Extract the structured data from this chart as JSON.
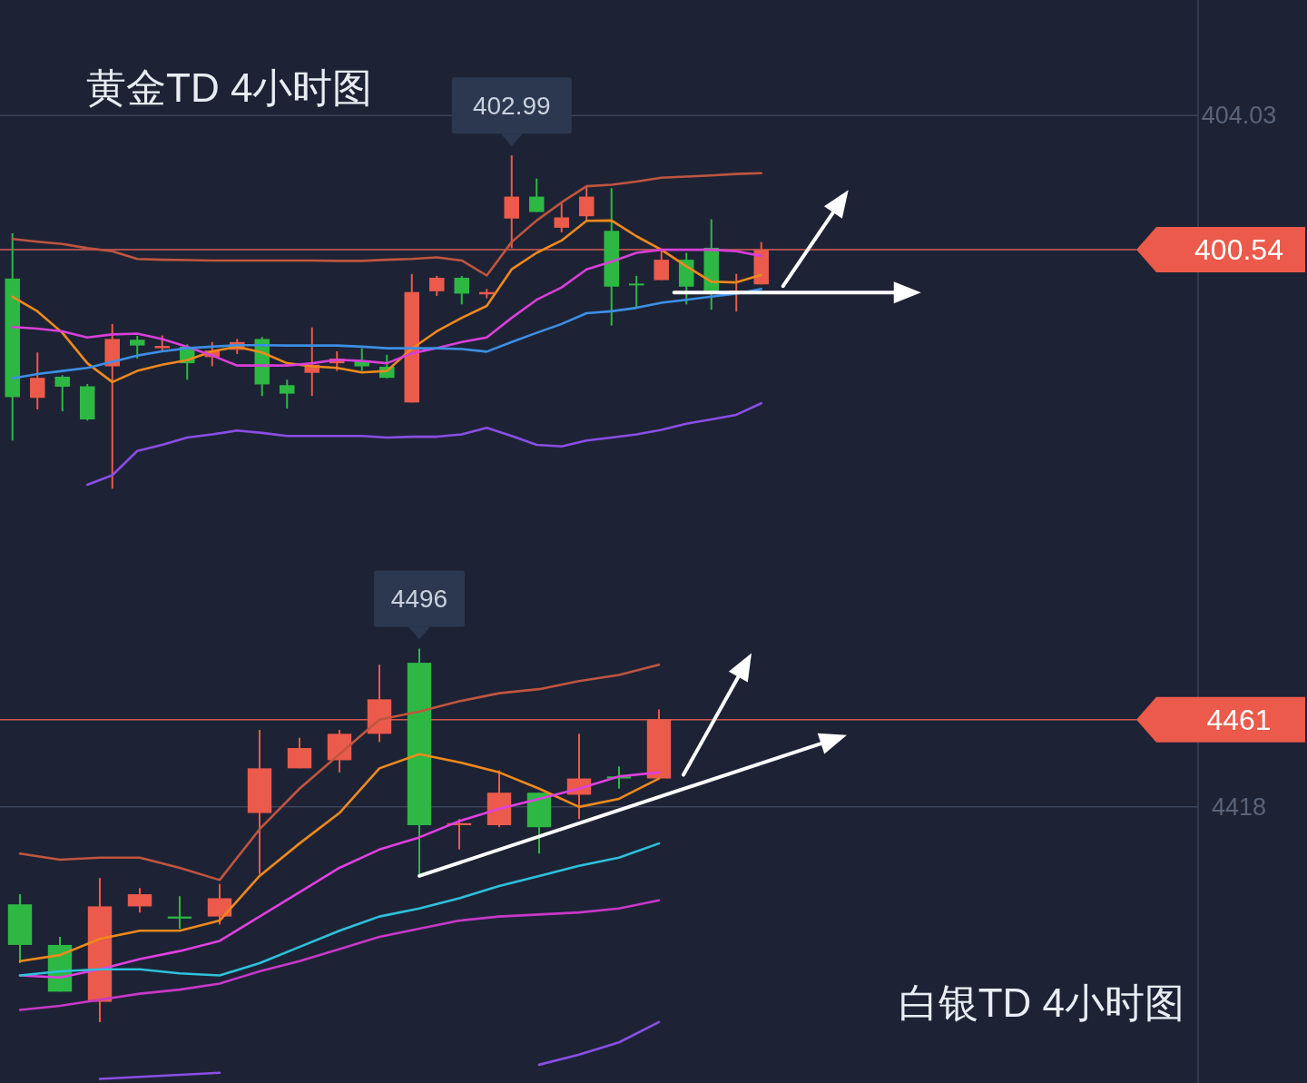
{
  "chart_data": [
    {
      "type": "candlestick",
      "title": "黄金TD 4小时图",
      "categories": [
        null,
        null,
        null,
        null,
        null,
        null,
        null,
        null,
        null,
        null,
        null,
        null,
        null,
        null,
        null,
        null,
        null,
        null,
        null,
        null,
        null,
        null,
        null,
        null,
        null,
        null,
        null,
        null,
        null,
        null,
        null,
        null,
        null,
        null,
        null,
        null,
        null,
        null,
        null,
        null,
        null,
        null,
        null,
        null,
        null,
        null,
        null,
        null
      ],
      "ohlc": [
        [
          399.79,
          400.97,
          395.58,
          396.71
        ],
        [
          396.69,
          397.87,
          396.39,
          397.21
        ],
        [
          397.24,
          397.28,
          396.34,
          396.98
        ],
        [
          396.99,
          397.05,
          396.1,
          396.13
        ],
        [
          397.51,
          398.61,
          394.33,
          398.22
        ],
        [
          398.2,
          398.3,
          397.71,
          398.05
        ],
        [
          397.98,
          398.31,
          397.9,
          398.04
        ],
        [
          398.02,
          398.08,
          397.16,
          397.59
        ],
        [
          397.75,
          398.14,
          397.51,
          397.92
        ],
        [
          397.94,
          398.22,
          397.83,
          398.14
        ],
        [
          398.22,
          398.27,
          396.74,
          397.04
        ],
        [
          397.02,
          397.16,
          396.41,
          396.8
        ],
        [
          397.34,
          398.52,
          396.74,
          397.55
        ],
        [
          397.59,
          397.9,
          397.39,
          397.71
        ],
        [
          397.65,
          397.98,
          397.39,
          397.51
        ],
        [
          397.5,
          397.81,
          397.2,
          397.21
        ],
        [
          396.57,
          399.91,
          396.57,
          399.44
        ],
        [
          399.46,
          399.86,
          399.34,
          399.81
        ],
        [
          399.81,
          399.86,
          399.12,
          399.4
        ],
        [
          399.38,
          399.52,
          399.28,
          399.44
        ],
        [
          401.35,
          402.99,
          400.58,
          401.92
        ],
        [
          401.92,
          402.39,
          401.52,
          401.52
        ],
        [
          401.11,
          401.77,
          400.99,
          401.38
        ],
        [
          401.41,
          402.17,
          401.29,
          401.92
        ],
        [
          401.03,
          402.14,
          398.57,
          399.58
        ],
        [
          399.66,
          399.86,
          399.05,
          399.64
        ],
        [
          399.75,
          400.56,
          399.75,
          400.28
        ],
        [
          400.28,
          400.46,
          399.12,
          399.58
        ],
        [
          400.59,
          401.33,
          398.98,
          399.4
        ],
        [
          399.41,
          399.91,
          398.93,
          399.48
        ],
        [
          399.64,
          400.74,
          399.64,
          400.54
        ],
        null,
        null,
        null,
        null,
        null,
        null,
        null,
        null,
        null,
        null,
        null,
        null,
        null,
        null,
        null,
        null,
        null
      ],
      "colors": [
        "#2db843",
        "#eb5a4b",
        "#2db843",
        "#2db843",
        "#eb5a4b",
        "#2db843",
        "#eb5a4b",
        "#2db843",
        "#eb5a4b",
        "#eb5a4b",
        "#2db843",
        "#2db843",
        "#eb5a4b",
        "#eb5a4b",
        "#2db843",
        "#2db843",
        "#eb5a4b",
        "#eb5a4b",
        "#2db843",
        "#eb5a4b",
        "#eb5a4b",
        "#2db843",
        "#eb5a4b",
        "#eb5a4b",
        "#2db843",
        "#2db843",
        "#eb5a4b",
        "#2db843",
        "#2db843",
        "#eb5a4b",
        "#eb5a4b",
        null,
        null,
        null,
        null,
        null,
        null,
        null,
        null,
        null,
        null,
        null,
        null,
        null,
        null,
        null,
        null,
        null
      ],
      "series": [
        {
          "type": "line",
          "color": "#c0553f",
          "values": [
            400.82,
            400.75,
            400.69,
            400.58,
            400.5,
            400.3,
            400.28,
            400.27,
            400.26,
            400.26,
            400.26,
            400.26,
            400.26,
            400.25,
            400.25,
            400.28,
            400.3,
            400.34,
            400.26,
            399.87,
            400.74,
            401.3,
            401.77,
            402.19,
            402.23,
            402.31,
            402.41,
            402.44,
            402.47,
            402.51,
            402.53,
            null,
            null,
            null,
            null,
            null,
            null,
            null,
            null,
            null,
            null,
            null,
            null,
            null,
            null,
            null,
            null,
            null
          ]
        },
        {
          "type": "line",
          "color": "#f0891c",
          "values": [
            399.32,
            398.94,
            398.38,
            397.59,
            397.1,
            397.39,
            397.55,
            397.67,
            397.9,
            398.02,
            397.87,
            397.59,
            397.51,
            397.47,
            397.35,
            397.39,
            397.97,
            398.42,
            398.77,
            399.08,
            400.03,
            400.46,
            400.78,
            401.29,
            401.3,
            400.89,
            400.54,
            400.11,
            399.71,
            399.69,
            399.89,
            null,
            null,
            null,
            null,
            null,
            null,
            null,
            null,
            null,
            null,
            null,
            null,
            null,
            null,
            null,
            null,
            null
          ]
        },
        {
          "type": "line",
          "color": "#d93fd9",
          "values": [
            398.53,
            398.49,
            398.42,
            398.26,
            398.34,
            398.36,
            398.22,
            398.02,
            397.79,
            397.53,
            397.53,
            397.53,
            397.59,
            397.68,
            397.65,
            397.59,
            397.85,
            397.98,
            398.14,
            398.26,
            398.77,
            399.24,
            399.56,
            400.03,
            400.23,
            400.46,
            400.54,
            400.54,
            400.54,
            400.5,
            400.38,
            null,
            null,
            null,
            null,
            null,
            null,
            null,
            null,
            null,
            null,
            null,
            null,
            null,
            null,
            null,
            null,
            null
          ]
        },
        {
          "type": "line",
          "color": "#3d8fe6",
          "values": [
            397.2,
            397.31,
            397.39,
            397.47,
            397.63,
            397.79,
            397.9,
            397.98,
            398.02,
            398.06,
            398.06,
            398.05,
            398.05,
            398.05,
            398.02,
            397.98,
            397.98,
            397.98,
            397.96,
            397.89,
            398.14,
            398.38,
            398.61,
            398.89,
            398.94,
            399.03,
            399.16,
            399.24,
            399.32,
            399.4,
            399.52,
            null,
            null,
            null,
            null,
            null,
            null,
            null,
            null,
            null,
            null,
            null,
            null,
            null,
            null,
            null,
            null,
            null
          ]
        },
        {
          "type": "line",
          "color": "#8a4ee6",
          "values": [
            null,
            null,
            null,
            394.43,
            394.68,
            395.31,
            395.47,
            395.66,
            395.74,
            395.84,
            395.78,
            395.7,
            395.7,
            395.7,
            395.7,
            395.66,
            395.68,
            395.68,
            395.74,
            395.91,
            395.7,
            395.47,
            395.43,
            395.58,
            395.66,
            395.74,
            395.86,
            396.02,
            396.13,
            396.25,
            396.55,
            null,
            null,
            null,
            null,
            null,
            null,
            null,
            null,
            null,
            null,
            null,
            null,
            null,
            null,
            null,
            null,
            null
          ]
        }
      ],
      "ylim": [
        394.29,
        407.03
      ],
      "yticks": [
        400.54,
        404.03
      ],
      "grid": "y",
      "ref_lines": [
        {
          "axis": "y",
          "value": 400.54,
          "color": "#eb5a4b"
        }
      ],
      "annotations": [
        {
          "text": "402.99",
          "y": 402.99
        }
      ]
    },
    {
      "type": "candlestick",
      "title": "白银TD 4小时图",
      "categories": [
        null,
        null,
        null,
        null,
        null,
        null,
        null,
        null,
        null,
        null,
        null,
        null,
        null,
        null,
        null,
        null,
        null,
        null,
        null,
        null,
        null,
        null,
        null,
        null,
        null,
        null,
        null,
        null,
        null,
        null
      ],
      "ohlc": [
        [
          4370,
          4375,
          4341,
          4350
        ],
        [
          4350,
          4354,
          4327,
          4327
        ],
        [
          4322,
          4383,
          4312,
          4369
        ],
        [
          4369,
          4378,
          4366,
          4375
        ],
        [
          4364,
          4374,
          4358,
          4363
        ],
        [
          4364,
          4380,
          4360,
          4373
        ],
        [
          4415,
          4456,
          4385,
          4437
        ],
        [
          4437,
          4452,
          4437,
          4447
        ],
        [
          4441,
          4456,
          4435,
          4454
        ],
        [
          4454,
          4488,
          4450,
          4471
        ],
        [
          4489,
          4496,
          4384,
          4409
        ],
        [
          4409,
          4412,
          4397,
          4410
        ],
        [
          4409,
          4436,
          4408,
          4425
        ],
        [
          4425,
          4425,
          4395,
          4408
        ],
        [
          4424,
          4454,
          4412,
          4432
        ],
        [
          4433,
          4438,
          4427,
          4432
        ],
        [
          4432,
          4466,
          4432,
          4461
        ],
        null,
        null,
        null,
        null,
        null,
        null,
        null,
        null,
        null,
        null,
        null,
        null,
        null
      ],
      "colors": [
        "#2db843",
        "#2db843",
        "#eb5a4b",
        "#eb5a4b",
        "#2db843",
        "#eb5a4b",
        "#eb5a4b",
        "#eb5a4b",
        "#eb5a4b",
        "#eb5a4b",
        "#2db843",
        "#eb5a4b",
        "#eb5a4b",
        "#2db843",
        "#eb5a4b",
        "#2db843",
        "#eb5a4b",
        null,
        null,
        null,
        null,
        null,
        null,
        null,
        null,
        null,
        null,
        null,
        null,
        null
      ],
      "series": [
        {
          "type": "line",
          "color": "#c0553f",
          "values": [
            4395,
            4392,
            4393,
            4393,
            4388,
            4382,
            4407,
            4427,
            4444,
            4461,
            4465,
            4470,
            4474,
            4476,
            4480,
            4483,
            4488,
            null,
            null,
            null,
            null,
            null,
            null,
            null,
            null,
            null,
            null,
            null,
            null,
            null
          ]
        },
        {
          "type": "line",
          "color": "#f0891c",
          "values": [
            4342,
            4345,
            4353,
            4357,
            4357,
            4362,
            4384,
            4400,
            4415,
            4437,
            4444,
            4440,
            4435,
            4427,
            4418,
            4422,
            4432,
            null,
            null,
            null,
            null,
            null,
            null,
            null,
            null,
            null,
            null,
            null,
            null,
            null
          ]
        },
        {
          "type": "line",
          "color": "#e040e0",
          "values": [
            4335,
            4334,
            4338,
            4343,
            4347,
            4352,
            4364,
            4376,
            4388,
            4397,
            4403,
            4411,
            4417,
            4422,
            4427,
            4433,
            4435,
            null,
            null,
            null,
            null,
            null,
            null,
            null,
            null,
            null,
            null,
            null,
            null,
            null
          ]
        },
        {
          "type": "line",
          "color": "#2fc0dc",
          "values": [
            4335,
            4337,
            4338,
            4338,
            4336,
            4335,
            4341,
            4349,
            4357,
            4364,
            4368,
            4373,
            4379,
            4384,
            4389,
            4393,
            4400,
            null,
            null,
            null,
            null,
            null,
            null,
            null,
            null,
            null,
            null,
            null,
            null,
            null
          ]
        },
        {
          "type": "line",
          "color": "#c838c8",
          "values": [
            4318,
            4320,
            4323,
            4326,
            4328,
            4331,
            4337,
            4342,
            4348,
            4354,
            4358,
            4362,
            4364,
            4365,
            4366,
            4368,
            4372,
            null,
            null,
            null,
            null,
            null,
            null,
            null,
            null,
            null,
            null,
            null,
            null,
            null
          ]
        },
        {
          "type": "line",
          "color": "#8a4ee6",
          "values": [
            null,
            null,
            4284,
            4285,
            4286,
            4287,
            null,
            null,
            null,
            null,
            null,
            null,
            null,
            4291,
            4296,
            4302,
            4312,
            null,
            null,
            null,
            null,
            null,
            null,
            null,
            null,
            null,
            null,
            null,
            null,
            null
          ]
        }
      ],
      "ylim": [
        4282,
        4574
      ],
      "yticks": [
        4418,
        4461
      ],
      "grid": "y",
      "ref_lines": [
        {
          "axis": "y",
          "value": 4461,
          "color": "#eb5a4b"
        }
      ],
      "annotations": [
        {
          "text": "4496",
          "y": 4496
        }
      ]
    }
  ]
}
